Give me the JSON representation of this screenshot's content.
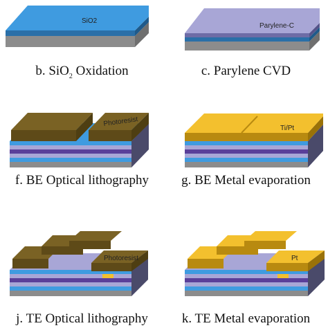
{
  "panels": [
    {
      "id": "b",
      "layer_label": "SiO2",
      "caption_prefix": "b. SiO",
      "caption_sub": "2",
      "caption_suffix": " Oxidation"
    },
    {
      "id": "c",
      "layer_label": "Parylene-C",
      "caption": "c. Parylene CVD"
    },
    {
      "id": "f",
      "layer_label": "Photoresist",
      "caption": "f. BE Optical lithography"
    },
    {
      "id": "g",
      "layer_label": "Ti/Pt",
      "caption": "g. BE Metal evaporation"
    },
    {
      "id": "j",
      "layer_label": "Photoresist",
      "caption": "j. TE Optical lithography"
    },
    {
      "id": "k",
      "layer_label": "Pt",
      "caption": "k. TE Metal evaporation"
    }
  ],
  "colors": {
    "silicon": "#8c8c8c",
    "silicon_dark": "#4a4a4a",
    "sio2": "#3f9be0",
    "sio2_dark": "#2a6fa8",
    "parylene": "#a8a6d6",
    "parylene_dark": "#6e6ca6",
    "purple_layer": "#5a3f9a",
    "photoresist": "#7a6224",
    "photoresist_dark": "#4e3e12",
    "metal": "#f3c02e",
    "metal_dark": "#b88a10"
  }
}
